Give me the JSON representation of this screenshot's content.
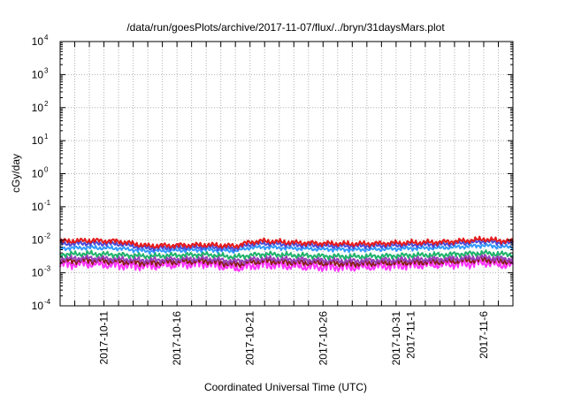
{
  "chart_data": {
    "type": "line",
    "title": "/data/run/goesPlots/archive/2017-11-07/flux/../bryn/31daysMars.plot",
    "xlabel": "Coordinated Universal Time (UTC)",
    "ylabel": "cGy/day",
    "yscale": "log",
    "ylim": [
      0.0001,
      10000
    ],
    "xlim": [
      "2017-10-08",
      "2017-11-08"
    ],
    "grid": true,
    "y_ticks": [
      {
        "base": "10",
        "exp": "4"
      },
      {
        "base": "10",
        "exp": "3"
      },
      {
        "base": "10",
        "exp": "2"
      },
      {
        "base": "10",
        "exp": "1"
      },
      {
        "base": "10",
        "exp": "0"
      },
      {
        "base": "10",
        "exp": "-1"
      },
      {
        "base": "10",
        "exp": "-2"
      },
      {
        "base": "10",
        "exp": "-3"
      },
      {
        "base": "10",
        "exp": "-4"
      }
    ],
    "x_ticks": [
      {
        "day": 3,
        "label": "2017-10-11"
      },
      {
        "day": 8,
        "label": "2017-10-16"
      },
      {
        "day": 13,
        "label": "2017-10-21"
      },
      {
        "day": 18,
        "label": "2017-10-26"
      },
      {
        "day": 23,
        "label": "2017-10-31"
      },
      {
        "day": 24,
        "label": "2017-11-1"
      },
      {
        "day": 29,
        "label": "2017-11-6"
      }
    ],
    "series": [
      {
        "color": "#e41a1c",
        "x": [
          0,
          2,
          4,
          6,
          8,
          10,
          12,
          13,
          14,
          16,
          18,
          20,
          22,
          24,
          26,
          28,
          29,
          30,
          31
        ],
        "y": [
          0.009,
          0.0095,
          0.009,
          0.0065,
          0.0068,
          0.007,
          0.0065,
          0.0085,
          0.0092,
          0.0082,
          0.0078,
          0.0075,
          0.0078,
          0.0082,
          0.0085,
          0.0095,
          0.0105,
          0.0095,
          0.009
        ]
      },
      {
        "color": "#4a4ad8",
        "x": [
          0,
          2,
          4,
          6,
          8,
          10,
          12,
          13,
          14,
          16,
          18,
          20,
          22,
          24,
          26,
          28,
          29,
          30,
          31
        ],
        "y": [
          0.0075,
          0.0078,
          0.0075,
          0.0056,
          0.0058,
          0.006,
          0.0055,
          0.0072,
          0.0078,
          0.007,
          0.0066,
          0.0064,
          0.0066,
          0.007,
          0.0072,
          0.0082,
          0.009,
          0.0082,
          0.0078
        ]
      },
      {
        "color": "#3399ff",
        "x": [
          0,
          2,
          4,
          6,
          8,
          10,
          12,
          13,
          14,
          16,
          18,
          20,
          22,
          24,
          26,
          28,
          29,
          30,
          31
        ],
        "y": [
          0.0055,
          0.0058,
          0.0055,
          0.0045,
          0.0048,
          0.005,
          0.0046,
          0.0058,
          0.006,
          0.0055,
          0.0052,
          0.005,
          0.0052,
          0.0055,
          0.0057,
          0.0063,
          0.0068,
          0.0062,
          0.006
        ]
      },
      {
        "color": "#1fb36b",
        "x": [
          0,
          2,
          4,
          6,
          8,
          10,
          12,
          13,
          14,
          16,
          18,
          20,
          22,
          24,
          26,
          28,
          29,
          30,
          31
        ],
        "y": [
          0.0036,
          0.0038,
          0.0035,
          0.0032,
          0.0034,
          0.0036,
          0.003,
          0.0034,
          0.0037,
          0.0034,
          0.0032,
          0.0031,
          0.0032,
          0.0034,
          0.0035,
          0.0038,
          0.004,
          0.0037,
          0.0036
        ]
      },
      {
        "color": "#9b3fb8",
        "x": [
          0,
          2,
          4,
          6,
          8,
          10,
          12,
          13,
          14,
          16,
          18,
          20,
          22,
          24,
          26,
          28,
          29,
          30,
          31
        ],
        "y": [
          0.0027,
          0.0028,
          0.0026,
          0.0024,
          0.0026,
          0.0027,
          0.0022,
          0.0025,
          0.0027,
          0.0025,
          0.0024,
          0.0023,
          0.0024,
          0.0025,
          0.0026,
          0.0028,
          0.003,
          0.0027,
          0.0026
        ]
      },
      {
        "color": "#8a1c1c",
        "x": [
          0,
          2,
          4,
          6,
          8,
          10,
          12,
          13,
          14,
          16,
          18,
          20,
          22,
          24,
          26,
          28,
          29,
          30,
          31
        ],
        "y": [
          0.0023,
          0.0024,
          0.0022,
          0.002,
          0.0022,
          0.0023,
          0.0018,
          0.0021,
          0.0023,
          0.0021,
          0.002,
          0.0019,
          0.002,
          0.0021,
          0.0022,
          0.0024,
          0.0026,
          0.0023,
          0.0022
        ]
      },
      {
        "color": "#ff33ff",
        "x": [
          0,
          2,
          4,
          6,
          8,
          10,
          12,
          13,
          14,
          16,
          18,
          20,
          22,
          24,
          26,
          28,
          29,
          30,
          31
        ],
        "y": [
          0.0018,
          0.0019,
          0.0017,
          0.0016,
          0.0018,
          0.0019,
          0.0014,
          0.0016,
          0.0018,
          0.0016,
          0.0015,
          0.0015,
          0.0016,
          0.0017,
          0.0018,
          0.0019,
          0.0021,
          0.0018,
          0.0017
        ]
      }
    ]
  }
}
